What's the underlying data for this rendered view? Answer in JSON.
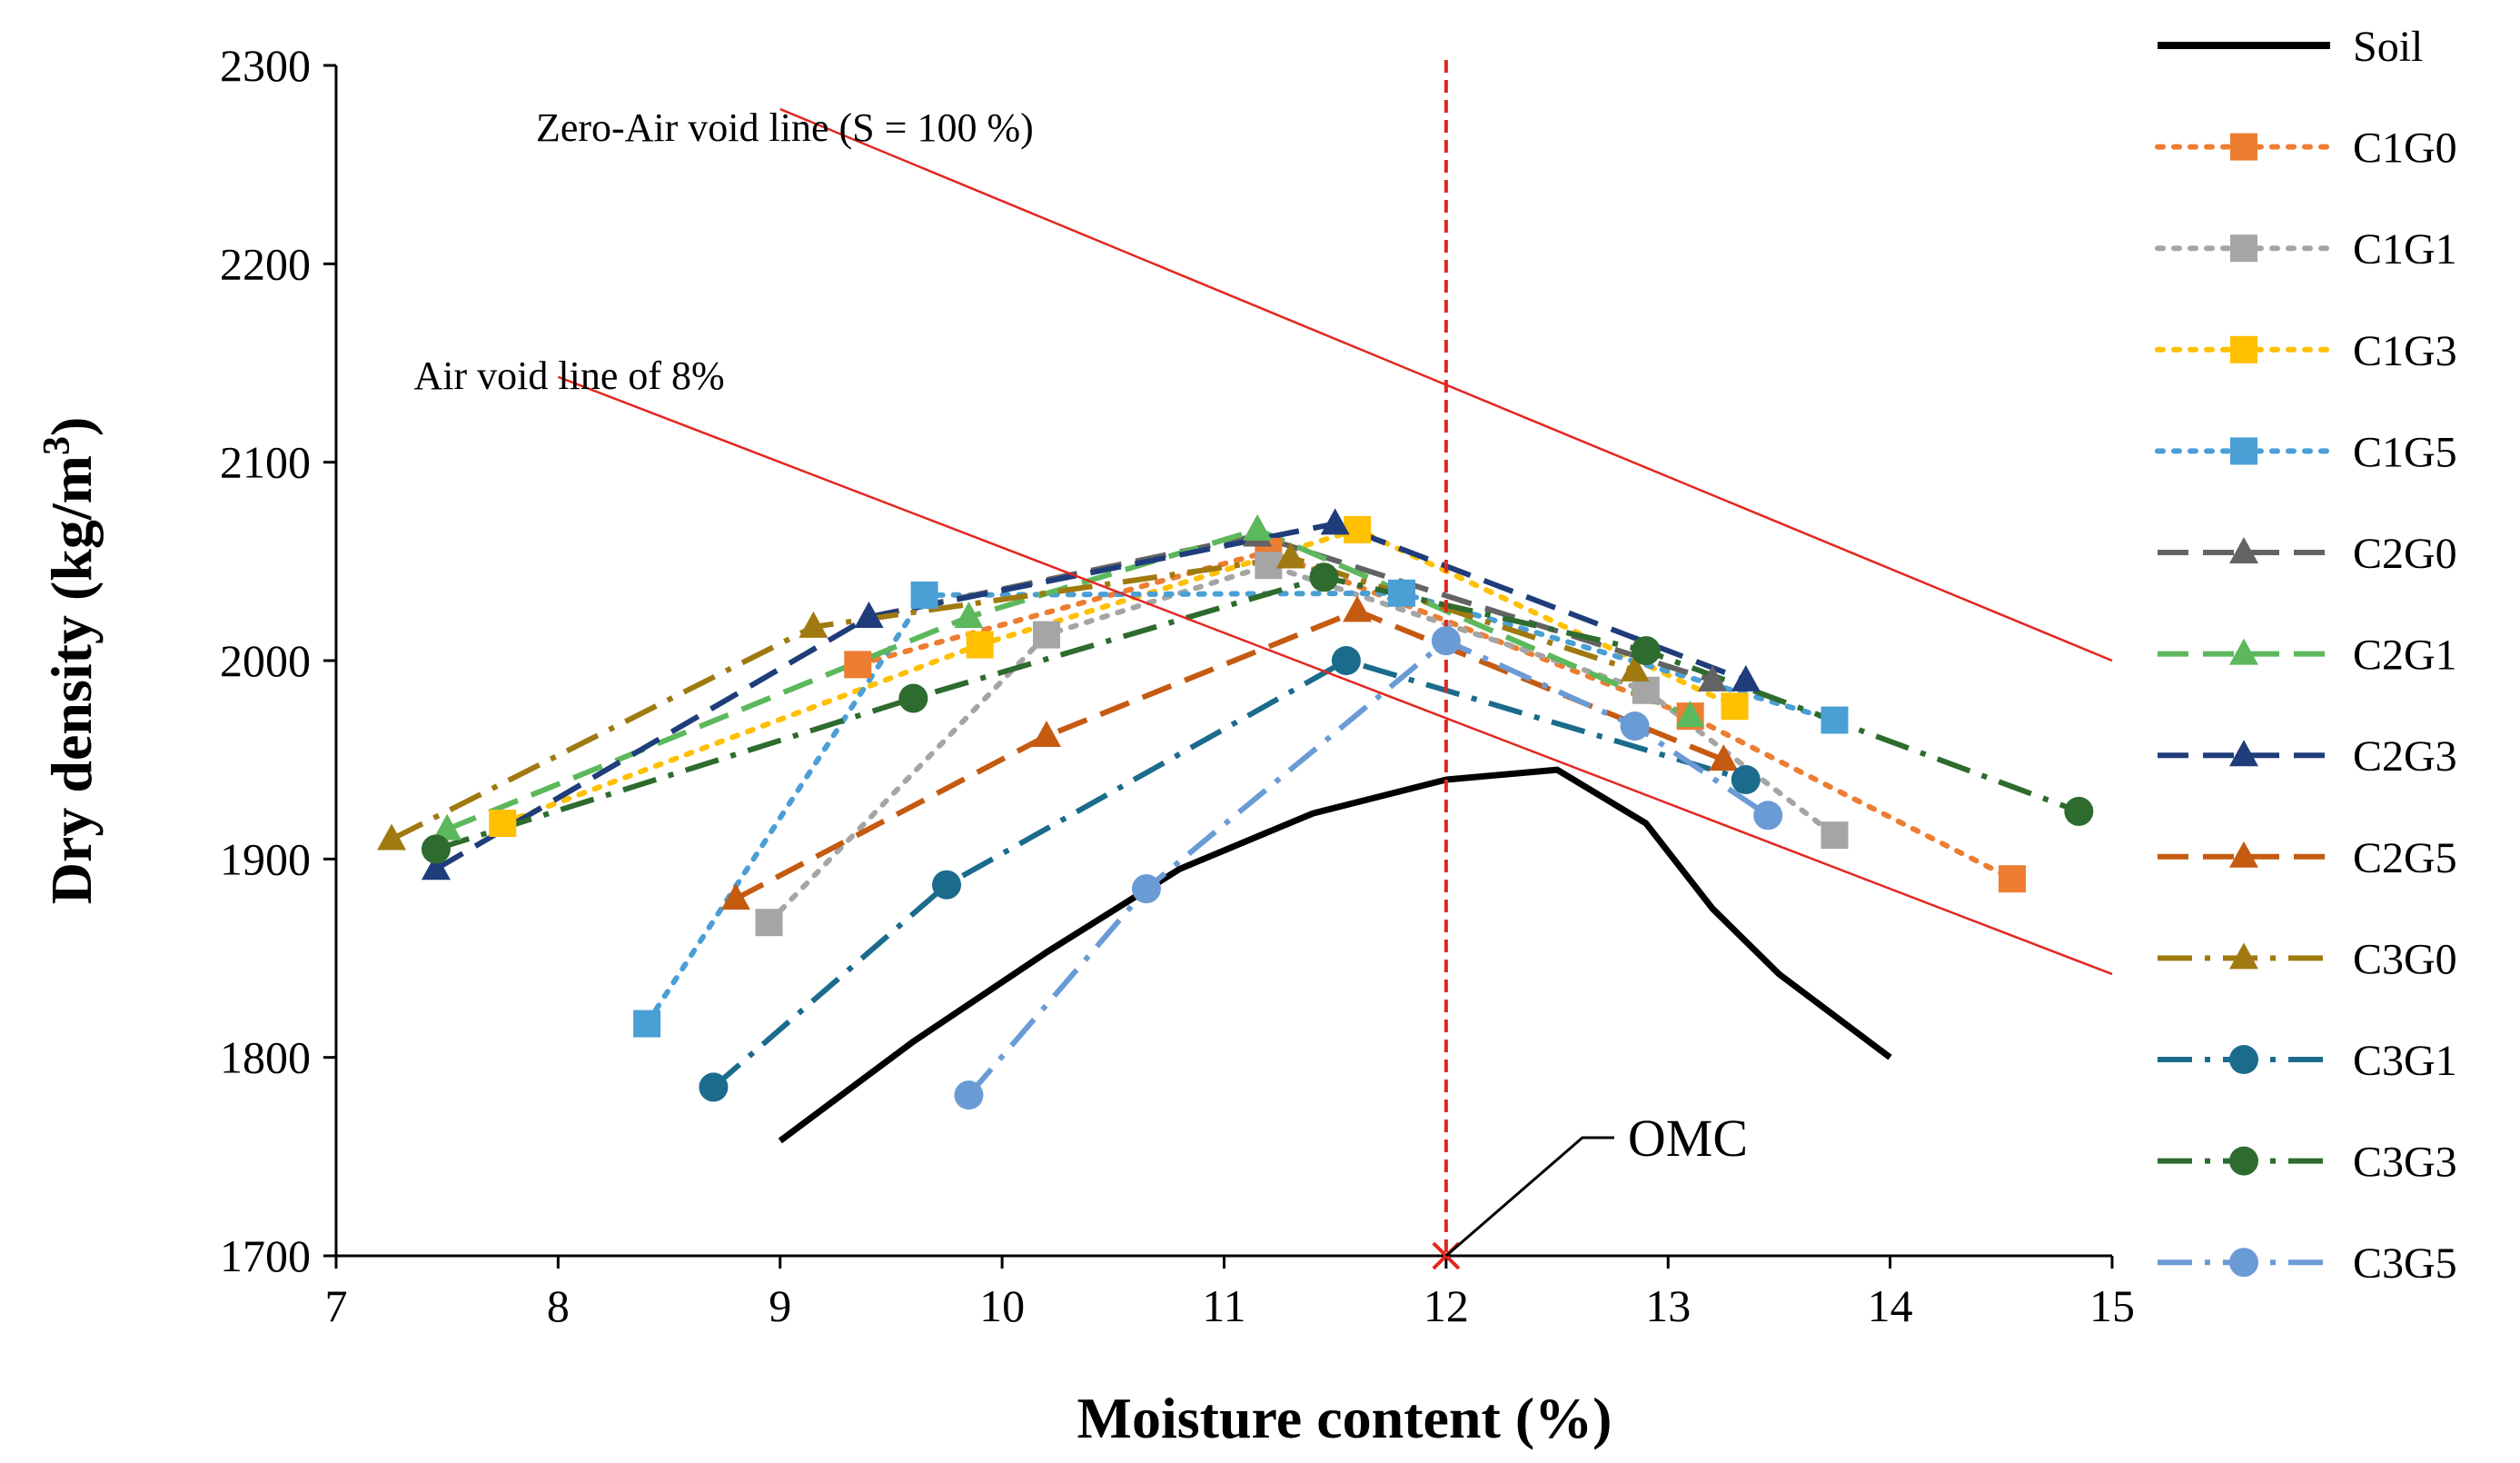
{
  "chart_data": {
    "type": "line",
    "xlabel": "Moisture content (%)",
    "ylabel_main": "Dry density (kg/m",
    "ylabel_sup": "3",
    "ylabel_close": ")",
    "xlim": [
      7,
      15
    ],
    "ylim": [
      1700,
      2300
    ],
    "x_ticks": [
      "7",
      "8",
      "9",
      "10",
      "11",
      "12",
      "13",
      "14",
      "15"
    ],
    "y_ticks": [
      "1700",
      "1800",
      "1900",
      "2000",
      "2100",
      "2200",
      "2300"
    ],
    "grid": false,
    "legend_position": "right",
    "series": [
      {
        "name": "Soil",
        "color": "#000000",
        "marker": "none",
        "dash": "solid",
        "points": [
          [
            9.0,
            1758
          ],
          [
            9.6,
            1808
          ],
          [
            10.2,
            1853
          ],
          [
            10.8,
            1895
          ],
          [
            11.4,
            1923
          ],
          [
            12.0,
            1940
          ],
          [
            12.5,
            1945
          ],
          [
            12.9,
            1918
          ],
          [
            13.2,
            1875
          ],
          [
            13.5,
            1842
          ],
          [
            14.0,
            1800
          ]
        ]
      },
      {
        "name": "C1G0",
        "color": "#ed7d31",
        "marker": "square",
        "dash": "dot",
        "points": [
          [
            9.35,
            1998
          ],
          [
            11.2,
            2055
          ],
          [
            13.1,
            1972
          ],
          [
            14.55,
            1890
          ]
        ]
      },
      {
        "name": "C1G1",
        "color": "#a5a5a5",
        "marker": "square",
        "dash": "dot",
        "points": [
          [
            8.95,
            1868
          ],
          [
            10.2,
            2013
          ],
          [
            11.2,
            2048
          ],
          [
            12.9,
            1985
          ],
          [
            13.75,
            1912
          ]
        ]
      },
      {
        "name": "C1G3",
        "color": "#ffc000",
        "marker": "square",
        "dash": "dot",
        "points": [
          [
            7.75,
            1918
          ],
          [
            9.9,
            2008
          ],
          [
            11.6,
            2066
          ],
          [
            13.3,
            1977
          ]
        ]
      },
      {
        "name": "C1G5",
        "color": "#4a9fd5",
        "marker": "square",
        "dash": "dot",
        "points": [
          [
            8.4,
            1817
          ],
          [
            9.65,
            2033
          ],
          [
            11.8,
            2034
          ],
          [
            13.75,
            1970
          ]
        ]
      },
      {
        "name": "C2G0",
        "color": "#636363",
        "marker": "triangle",
        "dash": "dash",
        "points": [
          [
            9.4,
            2022
          ],
          [
            11.15,
            2063
          ],
          [
            13.2,
            1990
          ]
        ]
      },
      {
        "name": "C2G1",
        "color": "#5cb85c",
        "marker": "triangle",
        "dash": "dash",
        "points": [
          [
            7.5,
            1915
          ],
          [
            9.85,
            2022
          ],
          [
            11.15,
            2066
          ],
          [
            13.1,
            1972
          ]
        ]
      },
      {
        "name": "C2G3",
        "color": "#1f3d7a",
        "marker": "triangle",
        "dash": "dash",
        "points": [
          [
            7.45,
            1895
          ],
          [
            9.4,
            2022
          ],
          [
            11.5,
            2069
          ],
          [
            13.35,
            1990
          ]
        ]
      },
      {
        "name": "C2G5",
        "color": "#c55a11",
        "marker": "triangle",
        "dash": "dash",
        "points": [
          [
            8.8,
            1880
          ],
          [
            10.2,
            1962
          ],
          [
            11.6,
            2025
          ],
          [
            13.25,
            1950
          ]
        ]
      },
      {
        "name": "C3G0",
        "color": "#a07a10",
        "marker": "triangle",
        "dash": "dashdot",
        "points": [
          [
            7.25,
            1910
          ],
          [
            9.15,
            2017
          ],
          [
            11.3,
            2052
          ],
          [
            12.85,
            1995
          ]
        ]
      },
      {
        "name": "C3G1",
        "color": "#1b6b8c",
        "marker": "circle",
        "dash": "dashdot",
        "points": [
          [
            8.7,
            1785
          ],
          [
            9.75,
            1887
          ],
          [
            11.55,
            2000
          ],
          [
            13.35,
            1940
          ]
        ]
      },
      {
        "name": "C3G3",
        "color": "#2e6b2e",
        "marker": "circle",
        "dash": "dashdot",
        "points": [
          [
            7.45,
            1905
          ],
          [
            9.6,
            1981
          ],
          [
            11.45,
            2042
          ],
          [
            12.9,
            2005
          ],
          [
            14.85,
            1924
          ]
        ]
      },
      {
        "name": "C3G5",
        "color": "#6b9bd5",
        "marker": "circle",
        "dash": "dashdot",
        "points": [
          [
            9.85,
            1781
          ],
          [
            10.65,
            1885
          ],
          [
            12.0,
            2010
          ],
          [
            12.85,
            1967
          ],
          [
            13.45,
            1922
          ]
        ]
      }
    ],
    "reference_lines": [
      {
        "label": "Zero-Air void line (S = 100 %)",
        "color": "#e3261f",
        "from": [
          9.0,
          2278
        ],
        "to": [
          15.0,
          2000
        ]
      },
      {
        "label": "Air void line of 8%",
        "color": "#e3261f",
        "from": [
          8.0,
          2143
        ],
        "to": [
          15.0,
          1842
        ]
      }
    ],
    "omc": {
      "label": "OMC",
      "x": 12.0,
      "color": "#e3261f"
    }
  }
}
